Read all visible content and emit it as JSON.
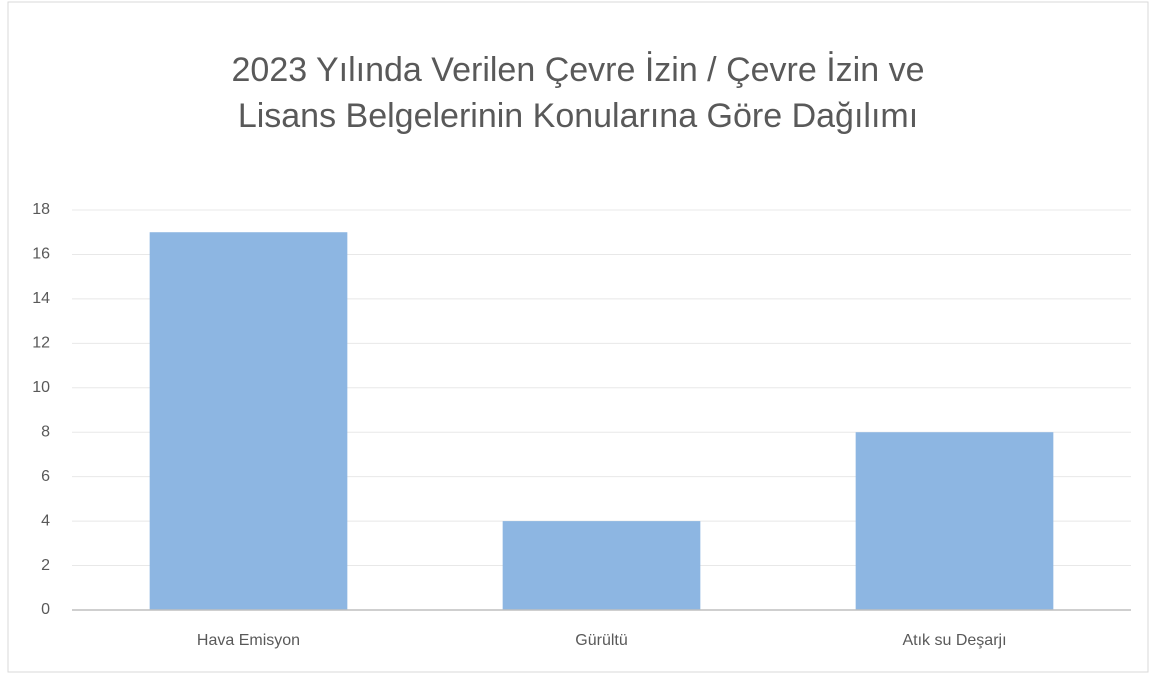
{
  "chart_data": {
    "type": "bar",
    "title": [
      "2023 Yılında Verilen Çevre İzin / Çevre İzin ve",
      "Lisans Belgelerinin Konularına Göre Dağılımı"
    ],
    "categories": [
      "Hava Emisyon",
      "Gürültü",
      "Atık su Deşarjı"
    ],
    "values": [
      17,
      4,
      8
    ],
    "color": "#8db6e2",
    "ylim": [
      0,
      18
    ],
    "yticks": [
      0,
      2,
      4,
      6,
      8,
      10,
      12,
      14,
      16,
      18
    ],
    "grid": true
  }
}
